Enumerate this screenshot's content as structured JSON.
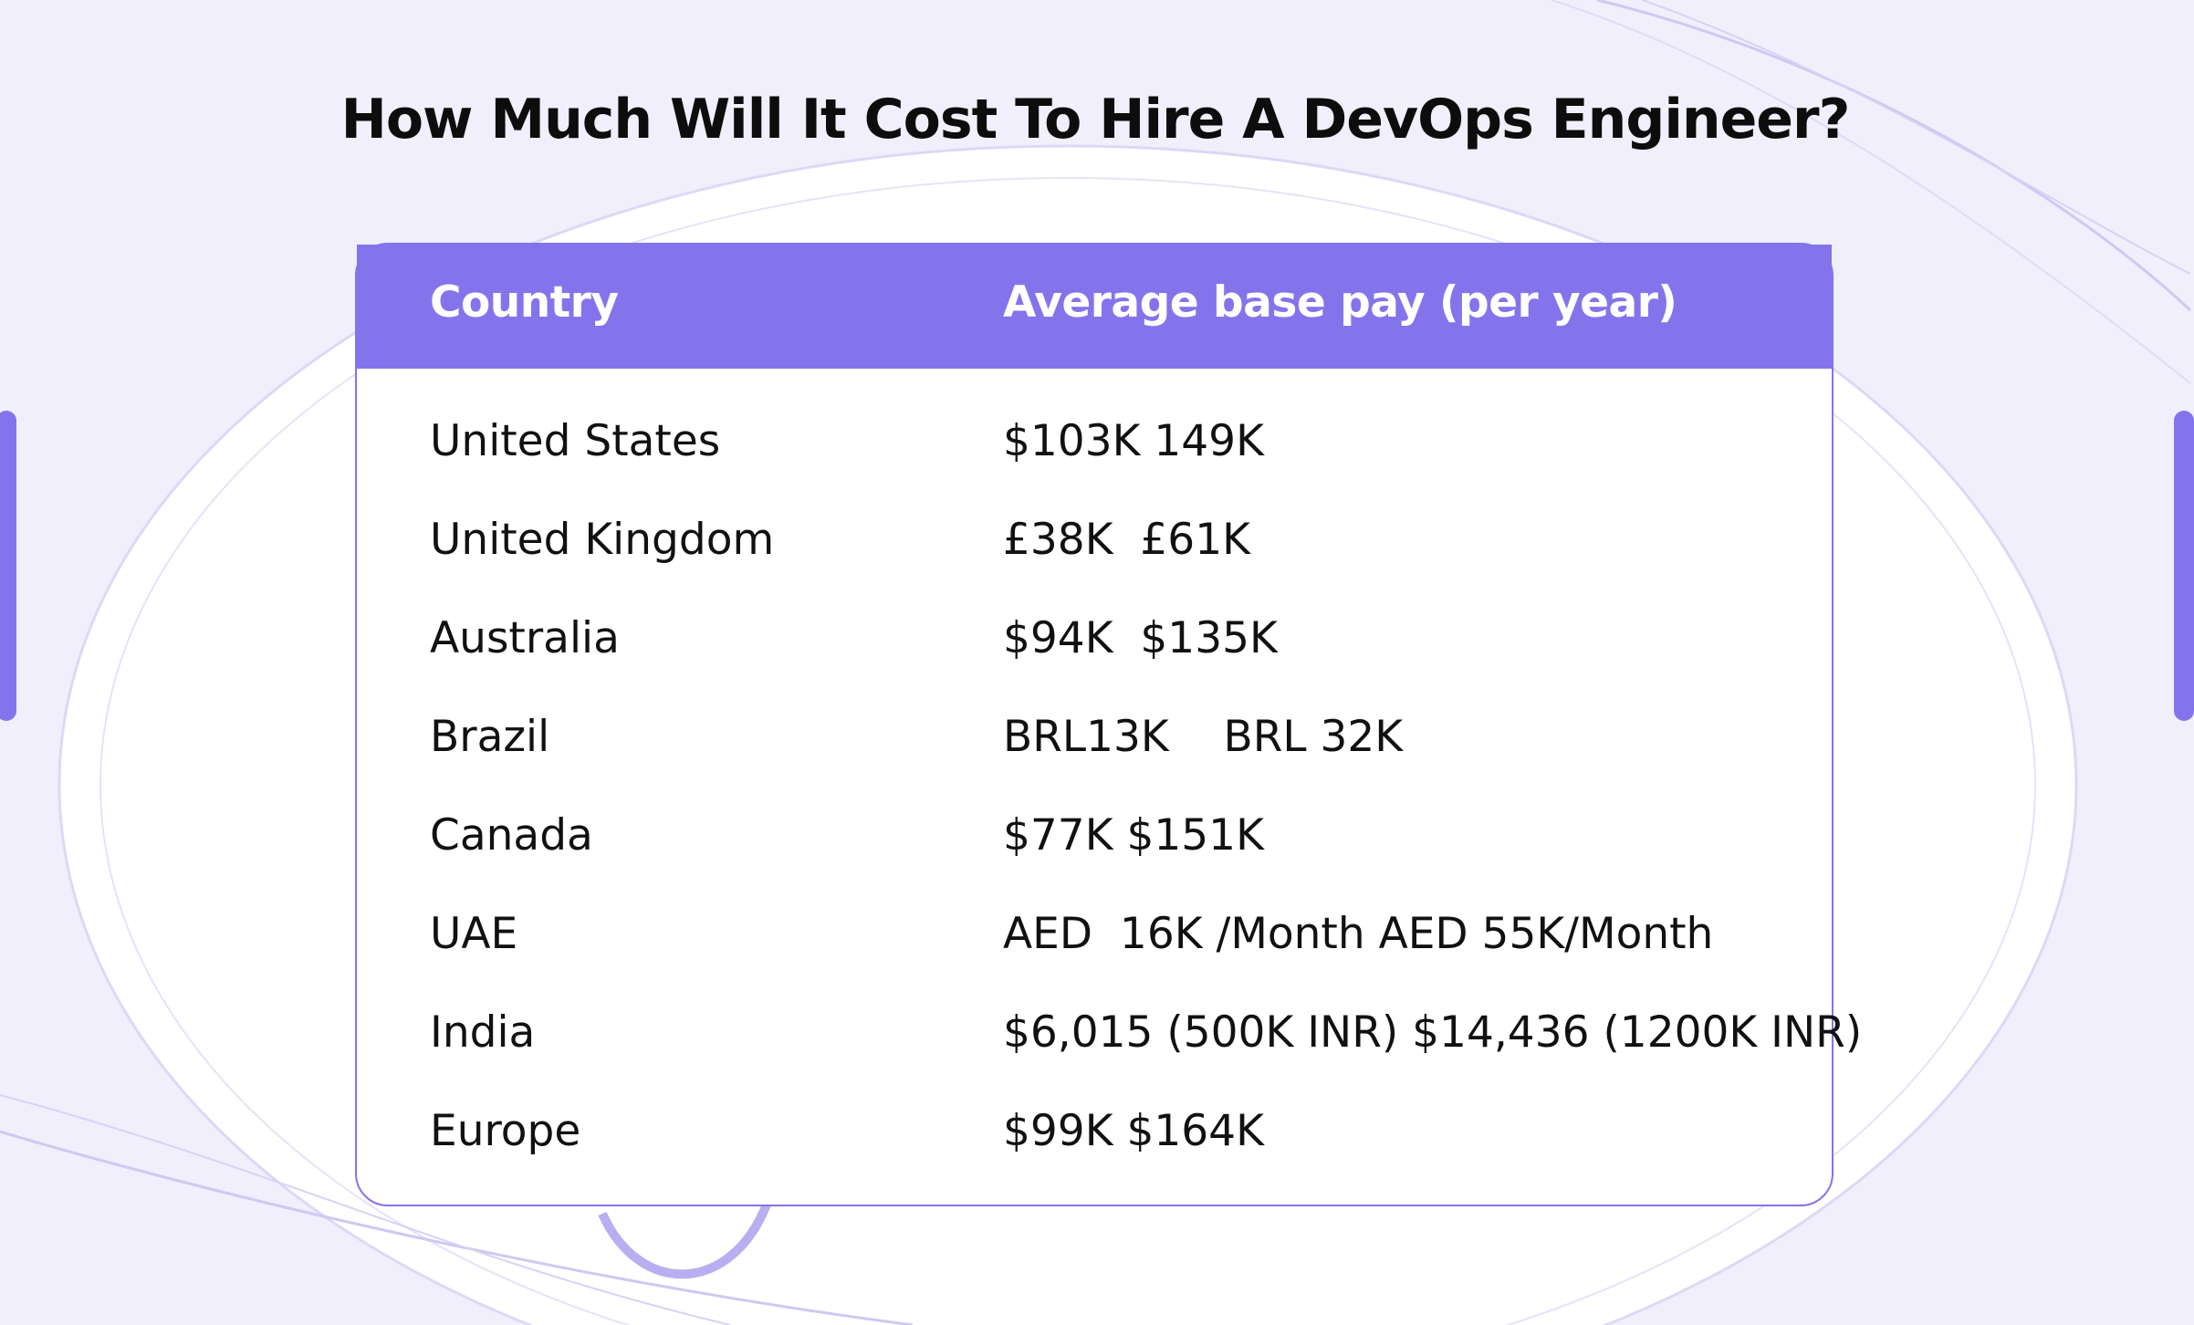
{
  "title": "How Much Will It Cost To Hire A DevOps Engineer?",
  "colors": {
    "accent": "#8474ec",
    "background": "#f1effb",
    "text": "#111111"
  },
  "table": {
    "headers": {
      "country": "Country",
      "pay": "Average base pay (per year)"
    },
    "rows": [
      {
        "country": "United States",
        "pay": "$103K 149K"
      },
      {
        "country": "United Kingdom",
        "pay": "£38K  £61K"
      },
      {
        "country": "Australia",
        "pay": "$94K  $135K"
      },
      {
        "country": "Brazil",
        "pay": "BRL13K    BRL 32K"
      },
      {
        "country": "Canada",
        "pay": "$77K $151K"
      },
      {
        "country": "UAE",
        "pay": "AED  16K /Month AED 55K/Month"
      },
      {
        "country": "India",
        "pay": "$6,015 (500K INR) $14,436 (1200K INR)"
      },
      {
        "country": "Europe",
        "pay": "$99K $164K"
      }
    ]
  }
}
